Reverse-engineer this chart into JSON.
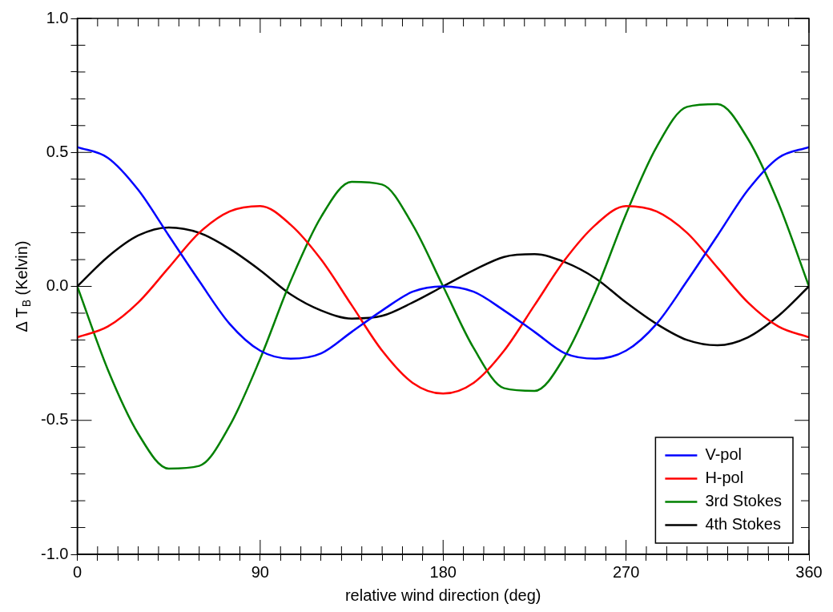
{
  "chart_data": {
    "type": "line",
    "xlabel": "relative wind direction (deg)",
    "ylabel": "Δ T$_{B}$ (Kelvin)",
    "x": [
      0,
      15,
      30,
      45,
      60,
      75,
      90,
      105,
      120,
      135,
      150,
      165,
      180,
      195,
      210,
      225,
      240,
      255,
      270,
      285,
      300,
      315,
      330,
      345,
      360
    ],
    "series": [
      {
        "name": "V-pol",
        "color": "#0000ff",
        "values": [
          0.52,
          0.48,
          0.36,
          0.19,
          0.02,
          -0.14,
          -0.24,
          -0.27,
          -0.25,
          -0.17,
          -0.09,
          -0.02,
          0,
          -0.02,
          -0.09,
          -0.17,
          -0.25,
          -0.27,
          -0.24,
          -0.14,
          0.02,
          0.19,
          0.36,
          0.48,
          0.52
        ]
      },
      {
        "name": "H-pol",
        "color": "#ff0000",
        "values": [
          -0.19,
          -0.15,
          -0.06,
          0.07,
          0.2,
          0.28,
          0.3,
          0.23,
          0.1,
          -0.07,
          -0.24,
          -0.36,
          -0.4,
          -0.36,
          -0.24,
          -0.07,
          0.1,
          0.23,
          0.3,
          0.28,
          0.2,
          0.07,
          -0.06,
          -0.15,
          -0.19
        ]
      },
      {
        "name": "3rd Stokes",
        "color": "#008000",
        "values": [
          0,
          -0.31,
          -0.55,
          -0.68,
          -0.67,
          -0.52,
          -0.27,
          0.02,
          0.26,
          0.39,
          0.38,
          0.23,
          0,
          -0.23,
          -0.38,
          -0.39,
          -0.26,
          -0.02,
          0.27,
          0.52,
          0.67,
          0.68,
          0.55,
          0.31,
          0
        ]
      },
      {
        "name": "4th Stokes",
        "color": "#000000",
        "values": [
          0,
          0.11,
          0.19,
          0.22,
          0.2,
          0.14,
          0.06,
          -0.03,
          -0.09,
          -0.12,
          -0.11,
          -0.06,
          0,
          0.06,
          0.11,
          0.12,
          0.09,
          0.03,
          -0.06,
          -0.14,
          -0.2,
          -0.22,
          -0.19,
          -0.11,
          0
        ]
      }
    ],
    "xlim": [
      0,
      360
    ],
    "xticks": [
      0,
      {
        "value": 10,
        "label": null
      },
      {
        "value": 20,
        "label": null
      },
      {
        "value": 30,
        "label": null
      },
      {
        "value": 40,
        "label": null
      },
      {
        "value": 50,
        "label": null
      },
      {
        "value": 60,
        "label": null
      },
      {
        "value": 70,
        "label": null
      },
      {
        "value": 80,
        "label": null
      },
      90,
      {
        "value": 100,
        "label": null
      },
      {
        "value": 110,
        "label": null
      },
      {
        "value": 120,
        "label": null
      },
      {
        "value": 130,
        "label": null
      },
      {
        "value": 140,
        "label": null
      },
      {
        "value": 150,
        "label": null
      },
      {
        "value": 160,
        "label": null
      },
      {
        "value": 170,
        "label": null
      },
      180,
      {
        "value": 190,
        "label": null
      },
      {
        "value": 200,
        "label": null
      },
      {
        "value": 210,
        "label": null
      },
      {
        "value": 220,
        "label": null
      },
      {
        "value": 230,
        "label": null
      },
      {
        "value": 240,
        "label": null
      },
      {
        "value": 250,
        "label": null
      },
      {
        "value": 260,
        "label": null
      },
      270,
      {
        "value": 280,
        "label": null
      },
      {
        "value": 290,
        "label": null
      },
      {
        "value": 300,
        "label": null
      },
      {
        "value": 310,
        "label": null
      },
      {
        "value": 320,
        "label": null
      },
      {
        "value": 330,
        "label": null
      },
      {
        "value": 340,
        "label": null
      },
      {
        "value": 350,
        "label": null
      },
      360
    ],
    "ylim": [
      -1,
      1
    ],
    "yticks": [
      {
        "value": -1,
        "label": "-1.0"
      },
      {
        "value": -0.9,
        "label": null
      },
      {
        "value": -0.8,
        "label": null
      },
      {
        "value": -0.7,
        "label": null
      },
      {
        "value": -0.6,
        "label": null
      },
      {
        "value": -0.5,
        "label": "-0.5"
      },
      {
        "value": -0.4,
        "label": null
      },
      {
        "value": -0.3,
        "label": null
      },
      {
        "value": -0.2,
        "label": null
      },
      {
        "value": -0.1,
        "label": null
      },
      {
        "value": 0,
        "label": "0.0"
      },
      {
        "value": 0.1,
        "label": null
      },
      {
        "value": 0.2,
        "label": null
      },
      {
        "value": 0.3,
        "label": null
      },
      {
        "value": 0.4,
        "label": null
      },
      {
        "value": 0.5,
        "label": "0.5"
      },
      {
        "value": 0.6,
        "label": null
      },
      {
        "value": 0.7,
        "label": null
      },
      {
        "value": 0.8,
        "label": null
      },
      {
        "value": 0.9,
        "label": null
      },
      {
        "value": 1,
        "label": "1.0"
      }
    ],
    "grid": false,
    "legend": "bottom right",
    "marker": "none",
    "line_style": "solid"
  }
}
